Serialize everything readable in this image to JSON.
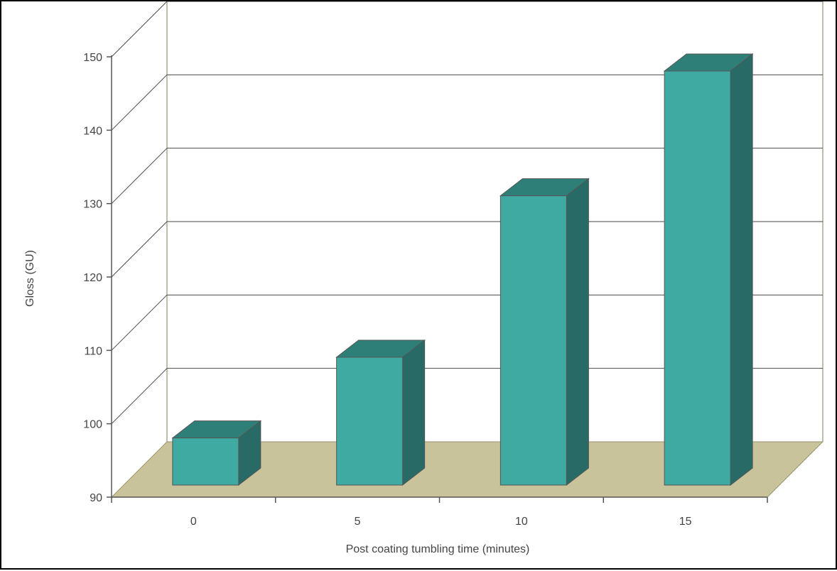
{
  "chart_data": {
    "type": "bar",
    "style": "3d-column",
    "categories": [
      "0",
      "5",
      "10",
      "15"
    ],
    "values": [
      100,
      111,
      133,
      150
    ],
    "title": "",
    "xlabel": "Post coating tumbling time (minutes)",
    "ylabel": "Gloss (GU)",
    "ylim": [
      90,
      150
    ],
    "yticks": [
      90,
      100,
      110,
      120,
      130,
      140,
      150
    ],
    "grid": true,
    "legend": "none",
    "colors": {
      "bar_front": "#3eaaa2",
      "bar_top": "#2e7f78",
      "bar_side": "#286b66",
      "bar_edge": "#555555",
      "floor": "#c8c39a",
      "wall_line": "#a8a890",
      "grid_line": "#4a4a4a",
      "axis_line": "#555555"
    }
  }
}
